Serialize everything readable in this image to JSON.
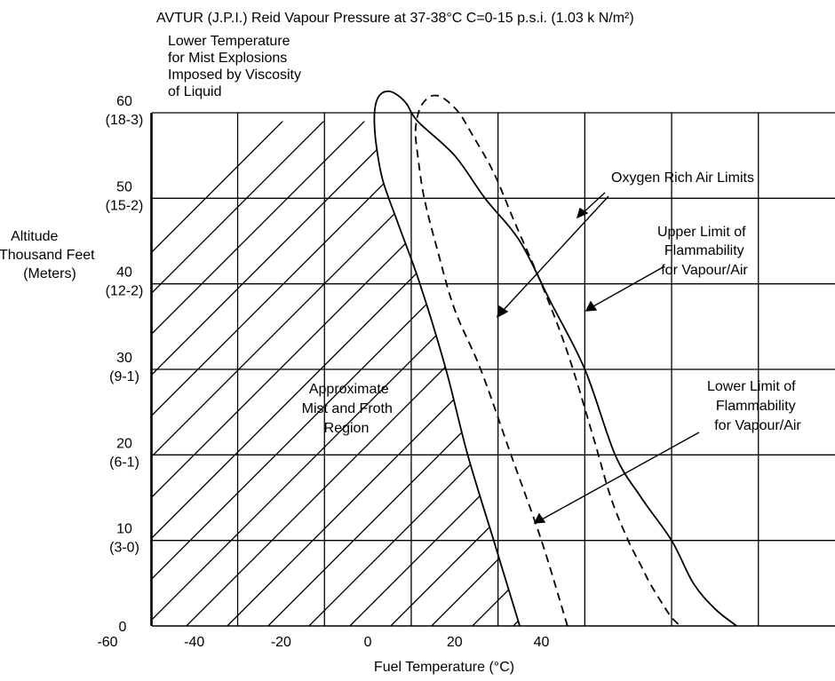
{
  "chart_data": {
    "type": "line",
    "title": "AVTUR (J.P.I.) Reid Vapour Pressure at 37-38°C C=0-15 p.s.i. (1.03 k N/m²)",
    "xlabel": "Fuel Temperature (°C)",
    "ylabel_lines": [
      "Altitude",
      "Thousand Feet",
      "(Meters)"
    ],
    "x_ticks": [
      "-60",
      "-40",
      "-20",
      "0",
      "20",
      "40"
    ],
    "y_ticks": [
      {
        "value": 0,
        "label": "0",
        "sub": ""
      },
      {
        "value": 10,
        "label": "10",
        "sub": "(3-0)"
      },
      {
        "value": 20,
        "label": "20",
        "sub": "(6-1)"
      },
      {
        "value": 30,
        "label": "30",
        "sub": "(9-1)"
      },
      {
        "value": 40,
        "label": "40",
        "sub": "(12-2)"
      },
      {
        "value": 50,
        "label": "50",
        "sub": "(15-2)"
      },
      {
        "value": 60,
        "label": "60",
        "sub": "(18-3)"
      }
    ],
    "xlim": [
      -60,
      100
    ],
    "ylim": [
      0,
      60
    ],
    "grid": true,
    "series": [
      {
        "style": "solid",
        "x": [
          35,
          29,
          23,
          18,
          12,
          7,
          3.5,
          2,
          1.5,
          1.8,
          3,
          5,
          7,
          9,
          11.5,
          20,
          27,
          35,
          42,
          50,
          57,
          63,
          70,
          75,
          80,
          85
        ],
        "y": [
          0,
          10,
          20,
          30,
          40,
          47,
          52,
          56,
          59,
          61,
          62.2,
          62.5,
          62,
          61,
          59,
          55,
          50,
          45,
          38,
          30,
          20,
          15,
          10,
          5,
          2,
          0
        ]
      },
      {
        "style": "dashed",
        "x": [
          46,
          40,
          33,
          26,
          20,
          16,
          13,
          11.5,
          11,
          12,
          14,
          16,
          18,
          21,
          24,
          29,
          34,
          40,
          46,
          52,
          56,
          60,
          63,
          65,
          68,
          70,
          72
        ],
        "y": [
          0,
          10,
          20,
          30,
          37,
          44,
          50,
          55,
          58,
          60.5,
          61.8,
          62,
          61.5,
          60,
          57.5,
          53,
          47,
          40,
          32,
          22,
          15,
          10,
          7,
          5,
          2.5,
          1,
          0
        ]
      }
    ],
    "shaded_region": {
      "label_lines": [
        "Approximate",
        "Mist and Froth",
        "Region"
      ],
      "x_min": -50,
      "boundary_x": [
        35,
        29,
        23,
        18,
        12,
        7,
        3.5,
        2,
        1.5
      ],
      "boundary_y": [
        0,
        10,
        20,
        30,
        40,
        47,
        52,
        56,
        59
      ]
    },
    "annotations": {
      "lower_temp_mist": [
        "Lower Temperature",
        "for Mist Explosions",
        "Imposed by Viscosity",
        "of Liquid"
      ],
      "oxygen_rich": [
        "Oxygen Rich Air Limits"
      ],
      "upper_limit": [
        "Upper Limit of",
        "Flammability",
        "for Vapour/Air"
      ],
      "lower_limit": [
        "Lower Limit of",
        "Flammability",
        "for Vapour/Air"
      ]
    }
  }
}
